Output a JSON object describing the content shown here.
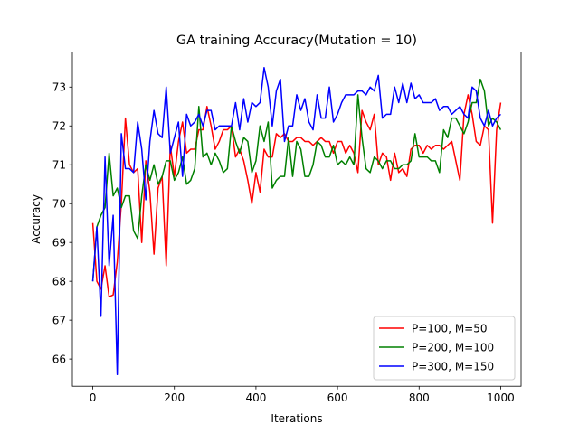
{
  "chart_data": {
    "type": "line",
    "title": "GA training Accuracy(Mutation = 10)",
    "xlabel": "Iterations",
    "ylabel": "Accuracy",
    "xlim": [
      -50,
      1050
    ],
    "ylim": [
      65.3,
      73.9
    ],
    "x_ticks": [
      0,
      200,
      400,
      600,
      800,
      1000
    ],
    "y_ticks": [
      66,
      67,
      68,
      69,
      70,
      71,
      72,
      73
    ],
    "grid": false,
    "legend_position": "lower-right",
    "x": [
      0,
      10,
      20,
      30,
      40,
      50,
      60,
      70,
      80,
      90,
      100,
      110,
      120,
      130,
      140,
      150,
      160,
      170,
      180,
      190,
      200,
      210,
      220,
      230,
      240,
      250,
      260,
      270,
      280,
      290,
      300,
      310,
      320,
      330,
      340,
      350,
      360,
      370,
      380,
      390,
      400,
      410,
      420,
      430,
      440,
      450,
      460,
      470,
      480,
      490,
      500,
      510,
      520,
      530,
      540,
      550,
      560,
      570,
      580,
      590,
      600,
      610,
      620,
      630,
      640,
      650,
      660,
      670,
      680,
      690,
      700,
      710,
      720,
      730,
      740,
      750,
      760,
      770,
      780,
      790,
      800,
      810,
      820,
      830,
      840,
      850,
      860,
      870,
      880,
      890,
      900,
      910,
      920,
      930,
      940,
      950,
      960,
      970,
      980,
      990,
      1000
    ],
    "series": [
      {
        "name": "P=100, M=50",
        "color": "#ff0000",
        "values": [
          69.5,
          68.0,
          67.8,
          68.4,
          67.6,
          67.65,
          68.5,
          70.0,
          72.2,
          71.0,
          70.8,
          70.9,
          69.0,
          71.1,
          70.3,
          68.7,
          70.4,
          70.7,
          68.4,
          71.5,
          70.7,
          71.6,
          72.1,
          71.3,
          71.4,
          71.4,
          71.9,
          71.9,
          72.5,
          72.0,
          71.4,
          71.6,
          71.9,
          71.9,
          72.0,
          71.2,
          71.4,
          71.1,
          70.6,
          70.0,
          70.8,
          70.3,
          71.4,
          71.2,
          71.2,
          71.8,
          71.7,
          71.8,
          71.6,
          71.6,
          71.7,
          71.7,
          71.6,
          71.6,
          71.5,
          71.6,
          71.7,
          71.6,
          71.6,
          71.3,
          71.6,
          71.6,
          71.3,
          71.5,
          71.3,
          70.8,
          72.4,
          72.1,
          71.9,
          72.3,
          71.0,
          71.3,
          71.2,
          70.6,
          71.3,
          70.8,
          70.9,
          70.7,
          71.4,
          71.5,
          71.5,
          71.3,
          71.5,
          71.4,
          71.5,
          71.5,
          71.4,
          71.5,
          71.6,
          71.1,
          70.6,
          72.3,
          72.8,
          72.3,
          71.6,
          71.5,
          72.0,
          71.9,
          69.5,
          71.9,
          72.6
        ]
      },
      {
        "name": "P=200, M=100",
        "color": "#008000",
        "values": [
          68.0,
          69.4,
          69.7,
          69.9,
          71.3,
          70.2,
          70.4,
          69.9,
          70.2,
          70.2,
          69.3,
          69.1,
          70.2,
          71.0,
          70.6,
          71.0,
          70.5,
          70.7,
          71.1,
          71.1,
          70.6,
          70.8,
          71.2,
          70.5,
          70.6,
          70.9,
          72.5,
          71.2,
          71.3,
          71.0,
          71.3,
          71.1,
          70.8,
          70.9,
          72.0,
          71.6,
          71.3,
          71.7,
          71.6,
          70.8,
          71.1,
          72.0,
          71.6,
          72.1,
          70.4,
          70.6,
          70.7,
          70.7,
          71.7,
          70.7,
          71.6,
          71.4,
          70.7,
          70.7,
          71.0,
          71.6,
          71.5,
          71.2,
          71.2,
          71.5,
          71.0,
          71.1,
          71.0,
          71.2,
          71.0,
          72.8,
          71.7,
          70.9,
          70.8,
          71.2,
          71.1,
          70.9,
          71.1,
          71.1,
          70.9,
          70.9,
          71.0,
          71.0,
          71.1,
          71.8,
          71.2,
          71.2,
          71.2,
          71.1,
          71.1,
          70.8,
          71.9,
          71.7,
          72.2,
          72.2,
          72.0,
          71.8,
          72.1,
          72.6,
          72.6,
          73.2,
          72.9,
          72.0,
          72.2,
          72.1,
          71.9
        ]
      },
      {
        "name": "P=300, M=150",
        "color": "#0000ff",
        "values": [
          68.0,
          69.4,
          67.1,
          71.2,
          68.4,
          69.7,
          65.6,
          71.8,
          70.9,
          70.9,
          70.8,
          72.1,
          71.4,
          70.1,
          71.6,
          72.4,
          71.8,
          71.7,
          73.0,
          71.3,
          71.7,
          72.1,
          70.7,
          72.3,
          72.0,
          72.1,
          72.3,
          72.0,
          72.4,
          72.4,
          71.9,
          72.0,
          72.0,
          72.0,
          72.0,
          72.6,
          71.9,
          72.7,
          72.1,
          72.6,
          72.5,
          72.6,
          73.5,
          73.0,
          72.0,
          72.9,
          73.2,
          71.6,
          72.0,
          72.0,
          72.8,
          72.4,
          72.7,
          72.1,
          71.9,
          72.8,
          72.2,
          72.2,
          73.0,
          72.1,
          72.3,
          72.6,
          72.8,
          72.8,
          72.8,
          72.9,
          72.9,
          72.8,
          73.0,
          72.9,
          73.3,
          72.2,
          72.3,
          72.3,
          73.0,
          72.6,
          73.1,
          72.6,
          73.1,
          72.7,
          72.8,
          72.6,
          72.6,
          72.6,
          72.7,
          72.4,
          72.5,
          72.5,
          72.3,
          72.4,
          72.5,
          72.3,
          72.2,
          73.0,
          72.9,
          72.2,
          72.0,
          72.4,
          72.0,
          72.2,
          72.3
        ]
      }
    ]
  }
}
